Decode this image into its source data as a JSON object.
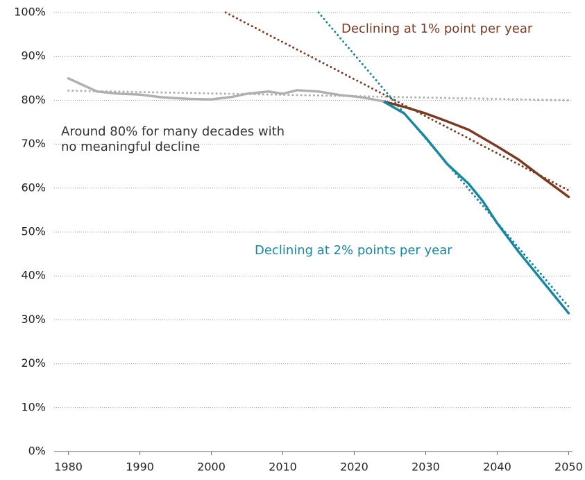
{
  "chart_data": {
    "type": "line",
    "xlim": [
      1978,
      2052
    ],
    "xticks": [
      1980,
      1990,
      2000,
      2010,
      2020,
      2030,
      2040,
      2050
    ],
    "ylim": [
      0,
      100
    ],
    "yticks": [
      {
        "value": 0,
        "label": "0%"
      },
      {
        "value": 10,
        "label": "10%"
      },
      {
        "value": 20,
        "label": "20%"
      },
      {
        "value": 30,
        "label": "30%"
      },
      {
        "value": 40,
        "label": "40%"
      },
      {
        "value": 50,
        "label": "50%"
      },
      {
        "value": 60,
        "label": "60%"
      },
      {
        "value": 70,
        "label": "70%"
      },
      {
        "value": 80,
        "label": "80%"
      },
      {
        "value": 90,
        "label": "90%"
      },
      {
        "value": 100,
        "label": "100%"
      }
    ],
    "grid": true,
    "series": [
      {
        "color": "#b0b0b0",
        "style": "dotted",
        "x": [
          1980,
          2050
        ],
        "values": [
          82.2,
          80
        ]
      },
      {
        "color": "#7b3a22",
        "style": "dotted",
        "x": [
          2002,
          2050
        ],
        "values": [
          100,
          59.5
        ]
      },
      {
        "color": "#1a87a0",
        "style": "dotted",
        "x": [
          2015,
          2050
        ],
        "values": [
          100,
          33
        ]
      },
      {
        "color": "#7b3a22",
        "style": "solid",
        "x": [
          2024,
          2027,
          2030,
          2033,
          2036,
          2040,
          2043,
          2046,
          2050
        ],
        "values": [
          79.8,
          78.5,
          77,
          75.2,
          73.3,
          69.5,
          66.5,
          62.8,
          58
        ]
      },
      {
        "color": "#1a87a0",
        "style": "solid",
        "x": [
          2024,
          2027,
          2030,
          2033,
          2036,
          2038,
          2040,
          2043,
          2046,
          2050
        ],
        "values": [
          79.8,
          77,
          71.5,
          65.5,
          61,
          57,
          52,
          45.5,
          39.5,
          31.5
        ]
      },
      {
        "color": "#b0b0b0",
        "style": "solid",
        "x": [
          1980,
          1982,
          1984,
          1987,
          1990,
          1993,
          1997,
          2000,
          2003,
          2005,
          2008,
          2010,
          2012,
          2015,
          2018,
          2021,
          2024
        ],
        "values": [
          85,
          83.5,
          82,
          81.5,
          81.3,
          80.7,
          80.3,
          80.2,
          80.8,
          81.5,
          82,
          81.5,
          82.3,
          82,
          81.2,
          80.7,
          79.8
        ]
      }
    ],
    "annotations": [
      {
        "color": "#7b3a22",
        "lines": [
          "Declining at 1% point per year"
        ]
      },
      {
        "color": "#1a87a0",
        "lines": [
          "Declining at 2% points per year"
        ]
      },
      {
        "color": "#333333",
        "lines": [
          "Around 80% for many decades with",
          "no meaningful decline"
        ]
      }
    ]
  }
}
